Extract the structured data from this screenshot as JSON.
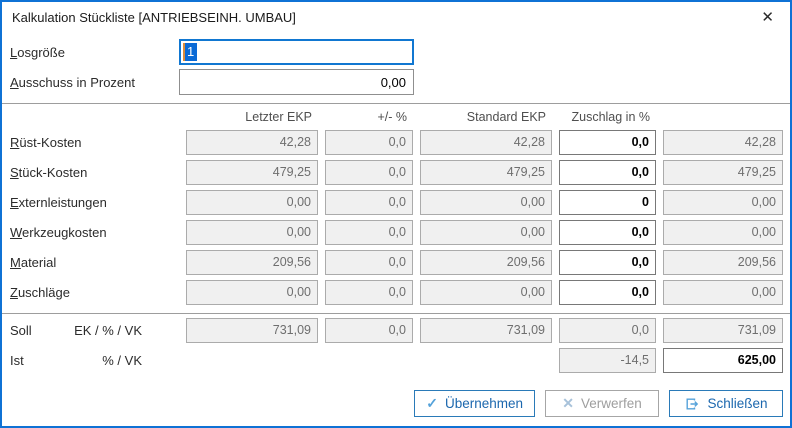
{
  "window": {
    "title": "Kalkulation Stückliste [ANTRIEBSEINH. UMBAU]",
    "close_glyph": "✕"
  },
  "colors": {
    "dialog_border": "#0f72d5",
    "focus_border": "#1177d1",
    "selection_blue": "#0a6ad6",
    "disabled_field_bg": "#f0f0f0",
    "disabled_field_text": "#6e6e6e",
    "button_blue": "#1b67ae",
    "button_icon_blue": "#55a2da"
  },
  "top_fields": {
    "losgroesse": {
      "label": "Losgröße",
      "value": "1"
    },
    "ausschuss": {
      "label": "Ausschuss in Prozent",
      "value": "0,00"
    }
  },
  "grid": {
    "headers": {
      "letzter_ekp": "Letzter EKP",
      "plus_minus": "+/- %",
      "standard_ekp": "Standard EKP",
      "zuschlag": "Zuschlag in %"
    },
    "rows": [
      {
        "label": "Rüst-Kosten",
        "letzter_ekp": "42,28",
        "plus_minus": "0,0",
        "standard_ekp": "42,28",
        "zuschlag": "0,0",
        "ergebnis": "42,28"
      },
      {
        "label": "Stück-Kosten",
        "letzter_ekp": "479,25",
        "plus_minus": "0,0",
        "standard_ekp": "479,25",
        "zuschlag": "0,0",
        "ergebnis": "479,25"
      },
      {
        "label": "Externleistungen",
        "letzter_ekp": "0,00",
        "plus_minus": "0,0",
        "standard_ekp": "0,00",
        "zuschlag": "0",
        "ergebnis": "0,00"
      },
      {
        "label": "Werkzeugkosten",
        "letzter_ekp": "0,00",
        "plus_minus": "0,0",
        "standard_ekp": "0,00",
        "zuschlag": "0,0",
        "ergebnis": "0,00"
      },
      {
        "label": "Material",
        "letzter_ekp": "209,56",
        "plus_minus": "0,0",
        "standard_ekp": "209,56",
        "zuschlag": "0,0",
        "ergebnis": "209,56"
      },
      {
        "label": "Zuschläge",
        "letzter_ekp": "0,00",
        "plus_minus": "0,0",
        "standard_ekp": "0,00",
        "zuschlag": "0,0",
        "ergebnis": "0,00"
      }
    ]
  },
  "totals": {
    "soll": {
      "label": "Soll",
      "sublabel": "EK / % / VK",
      "letzter_ekp": "731,09",
      "plus_minus": "0,0",
      "standard_ekp": "731,09",
      "zuschlag": "0,0",
      "ergebnis": "731,09"
    },
    "ist": {
      "label": "Ist",
      "sublabel": "% / VK",
      "zuschlag": "-14,5",
      "vk": "625,00"
    }
  },
  "buttons": {
    "uebernehmen": {
      "label": "Übernehmen",
      "glyph": "✓"
    },
    "verwerfen": {
      "label": "Verwerfen",
      "glyph": "✕"
    },
    "schliessen": {
      "label": "Schließen"
    }
  }
}
